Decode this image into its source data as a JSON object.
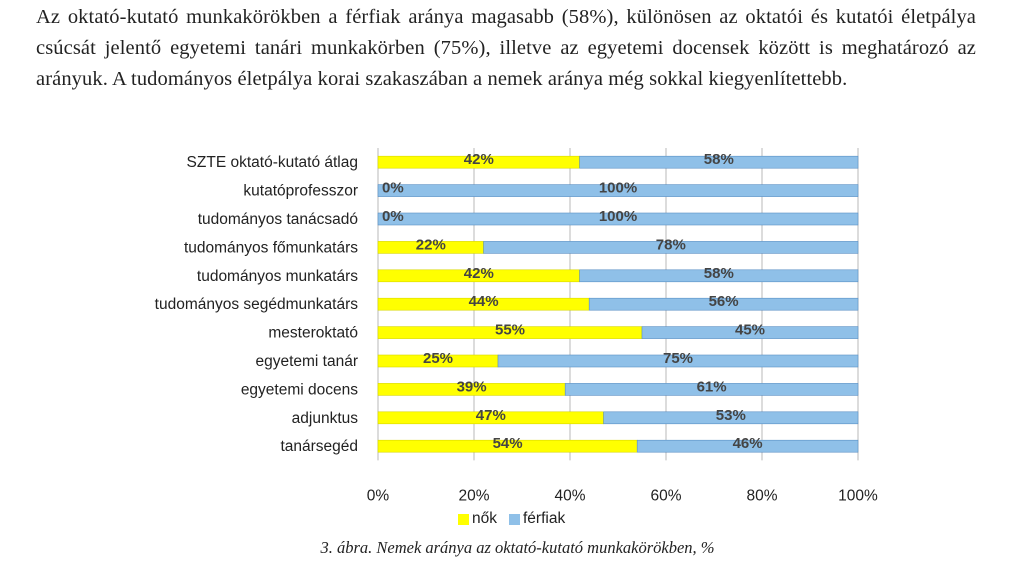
{
  "paragraph": "Az oktató-kutató munkakörökben a férfiak aránya magasabb (58%), különösen az oktatói és kutatói életpálya csúcsát jelentő egyetemi tanári munkakörben (75%), illetve az egyetemi docensek között is meghatározó az arányuk. A tudományos életpálya korai szakaszában a nemek aránya még sokkal kiegyenlítettebb.",
  "caption": "3. ábra. Nemek aránya az oktató-kutató munkakörökben, %",
  "chart_data": {
    "type": "bar",
    "orientation": "horizontal",
    "stacked": true,
    "percent_stacked": true,
    "categories": [
      "SZTE oktató-kutató átlag",
      "kutatóprofesszor",
      "tudományos tanácsadó",
      "tudományos főmunkatárs",
      "tudományos munkatárs",
      "tudományos segédmunkatárs",
      "mesteroktató",
      "egyetemi tanár",
      "egyetemi docens",
      "adjunktus",
      "tanársegéd"
    ],
    "series": [
      {
        "name": "nők",
        "color": "#ffff00",
        "values": [
          42,
          0,
          0,
          22,
          42,
          44,
          55,
          25,
          39,
          47,
          54
        ]
      },
      {
        "name": "férfiak",
        "color": "#8fc0e8",
        "values": [
          58,
          100,
          100,
          78,
          58,
          56,
          45,
          75,
          61,
          53,
          46
        ]
      }
    ],
    "xticks": [
      "0%",
      "20%",
      "40%",
      "60%",
      "80%",
      "100%"
    ],
    "xlim": [
      0,
      100
    ],
    "legend": "bottom",
    "grid": true
  }
}
